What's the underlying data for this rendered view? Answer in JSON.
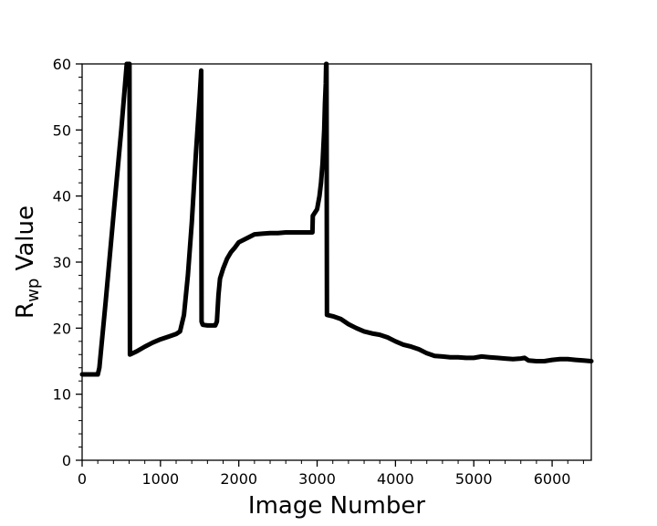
{
  "chart_data": {
    "type": "line",
    "title": "",
    "xlabel": "Image Number",
    "ylabel": {
      "main": "R",
      "sub": "wp",
      "rest": " Value"
    },
    "xlim": [
      0,
      6500
    ],
    "ylim": [
      0,
      60
    ],
    "xticks": [
      0,
      1000,
      2000,
      3000,
      4000,
      5000,
      6000
    ],
    "xtick_labels": [
      "0",
      "1000",
      "2000",
      "3000",
      "4000",
      "5000",
      "6000"
    ],
    "yticks": [
      0,
      10,
      20,
      30,
      40,
      50,
      60
    ],
    "ytick_labels": [
      "0",
      "10",
      "20",
      "30",
      "40",
      "50",
      "60"
    ],
    "grid": false,
    "series": [
      {
        "color": "#000000",
        "x": [
          0,
          100,
          200,
          220,
          300,
          400,
          500,
          570,
          600,
          605,
          610,
          700,
          800,
          900,
          1000,
          1100,
          1200,
          1250,
          1300,
          1350,
          1400,
          1450,
          1500,
          1520,
          1525,
          1540,
          1600,
          1650,
          1700,
          1720,
          1740,
          1760,
          1800,
          1850,
          1900,
          1950,
          2000,
          2100,
          2200,
          2300,
          2400,
          2500,
          2600,
          2700,
          2800,
          2900,
          2940,
          2945,
          3000,
          3030,
          3050,
          3070,
          3090,
          3100,
          3110,
          3115,
          3120,
          3125,
          3130,
          3200,
          3300,
          3400,
          3500,
          3600,
          3700,
          3800,
          3900,
          4000,
          4100,
          4200,
          4300,
          4400,
          4500,
          4600,
          4700,
          4800,
          4900,
          5000,
          5100,
          5200,
          5300,
          5400,
          5500,
          5600,
          5650,
          5700,
          5800,
          5900,
          6000,
          6100,
          6200,
          6300,
          6400,
          6500
        ],
        "y": [
          13,
          13,
          13,
          14,
          24,
          37,
          50,
          60,
          60,
          60,
          16,
          16.5,
          17.2,
          17.8,
          18.3,
          18.7,
          19.1,
          19.5,
          22,
          28,
          36,
          46,
          55,
          59,
          21,
          20.5,
          20.4,
          20.4,
          20.4,
          21,
          25,
          27.5,
          29,
          30.5,
          31.5,
          32.2,
          33,
          33.6,
          34.2,
          34.3,
          34.4,
          34.4,
          34.5,
          34.5,
          34.5,
          34.5,
          34.5,
          37,
          38,
          40,
          42,
          45,
          50,
          54,
          57,
          60,
          60,
          22,
          22,
          21.8,
          21.4,
          20.6,
          20,
          19.5,
          19.2,
          19,
          18.6,
          18,
          17.5,
          17.2,
          16.8,
          16.2,
          15.8,
          15.7,
          15.6,
          15.6,
          15.5,
          15.5,
          15.7,
          15.6,
          15.5,
          15.4,
          15.3,
          15.4,
          15.5,
          15.1,
          15.0,
          15.0,
          15.2,
          15.3,
          15.3,
          15.2,
          15.1,
          15.0
        ]
      }
    ]
  }
}
